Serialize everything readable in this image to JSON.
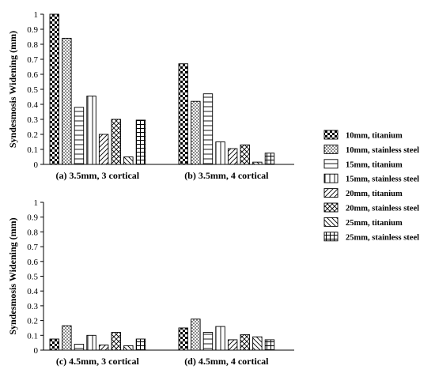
{
  "chart_data": [
    {
      "type": "bar",
      "ylabel": "Syndesmosis Widening (mm)",
      "ylim": [
        0,
        1
      ],
      "yticks": [
        0,
        0.1,
        0.2,
        0.3,
        0.4,
        0.5,
        0.6,
        0.7,
        0.8,
        0.9,
        1
      ],
      "groups": [
        {
          "label": "(a) 3.5mm, 3 cortical",
          "values": [
            1.0,
            0.84,
            0.38,
            0.455,
            0.2,
            0.3,
            0.05,
            0.295
          ]
        },
        {
          "label": "(b) 3.5mm, 4 cortical",
          "values": [
            0.67,
            0.42,
            0.47,
            0.15,
            0.105,
            0.13,
            0.015,
            0.075
          ]
        }
      ]
    },
    {
      "type": "bar",
      "ylabel": "Syndesmosis Widening (mm)",
      "ylim": [
        0,
        1
      ],
      "yticks": [
        0,
        0.1,
        0.2,
        0.3,
        0.4,
        0.5,
        0.6,
        0.7,
        0.8,
        0.9,
        1
      ],
      "groups": [
        {
          "label": "(c) 4.5mm, 3 cortical",
          "values": [
            0.075,
            0.165,
            0.04,
            0.1,
            0.035,
            0.12,
            0.03,
            0.075
          ]
        },
        {
          "label": "(d) 4.5mm, 4 cortical",
          "values": [
            0.15,
            0.21,
            0.12,
            0.16,
            0.07,
            0.105,
            0.09,
            0.07
          ]
        }
      ]
    }
  ],
  "legend": [
    {
      "name": "10mm, titanium",
      "pattern": "checker"
    },
    {
      "name": "10mm, stainless steel",
      "pattern": "dots"
    },
    {
      "name": "15mm, titanium",
      "pattern": "hlines"
    },
    {
      "name": "15mm, stainless steel",
      "pattern": "vlines"
    },
    {
      "name": "20mm, titanium",
      "pattern": "diag-up"
    },
    {
      "name": "20mm, stainless steel",
      "pattern": "crosshatch"
    },
    {
      "name": "25mm, titanium",
      "pattern": "diag-down"
    },
    {
      "name": "25mm, stainless steel",
      "pattern": "grid"
    }
  ]
}
